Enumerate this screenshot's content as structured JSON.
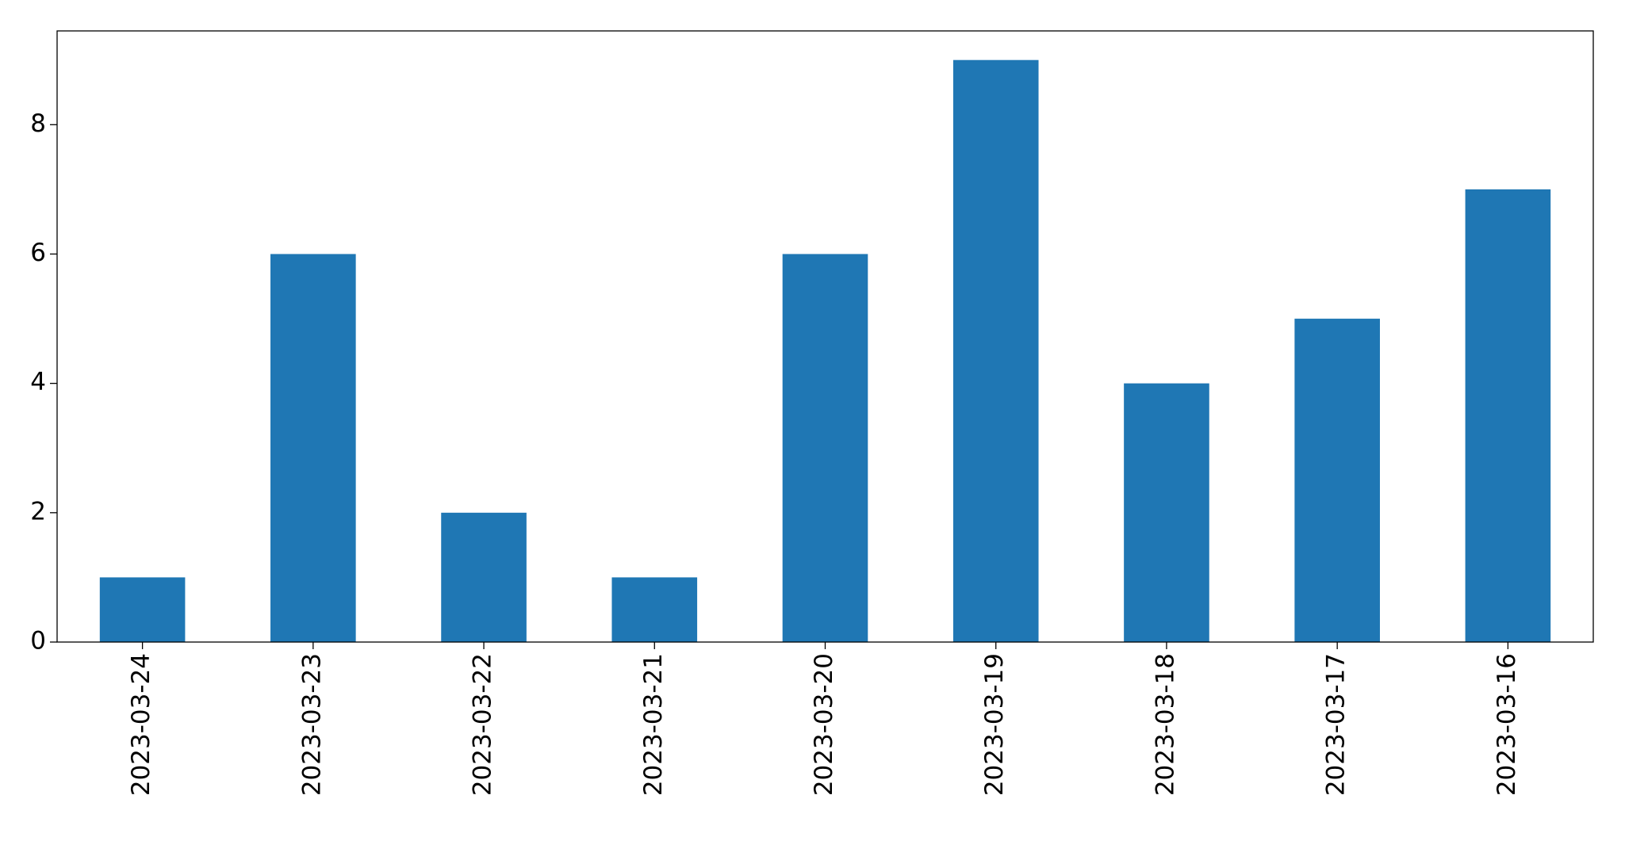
{
  "chart_data": {
    "type": "bar",
    "categories": [
      "2023-03-24",
      "2023-03-23",
      "2023-03-22",
      "2023-03-21",
      "2023-03-20",
      "2023-03-19",
      "2023-03-18",
      "2023-03-17",
      "2023-03-16"
    ],
    "values": [
      1,
      6,
      2,
      1,
      6,
      9,
      4,
      5,
      7
    ],
    "color": "#1f77b4",
    "ylim": [
      0,
      9.45
    ],
    "yticks": [
      0,
      2,
      4,
      6,
      8
    ],
    "grid": false
  }
}
